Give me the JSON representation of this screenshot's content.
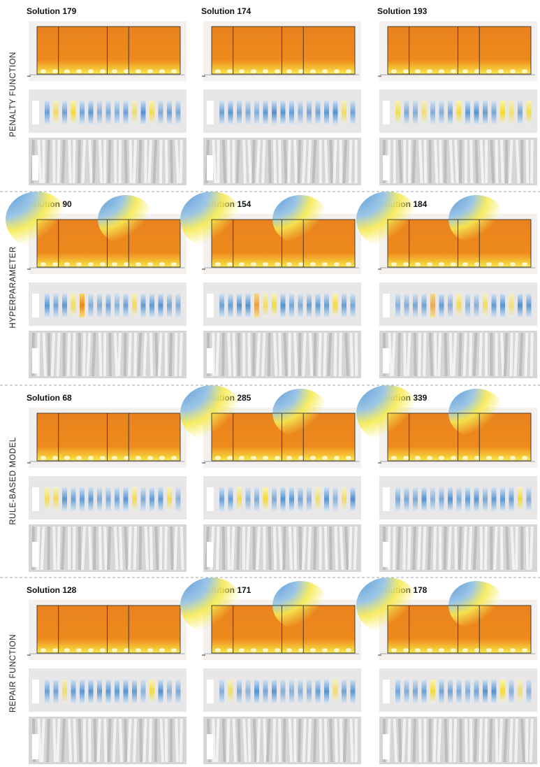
{
  "groups": [
    {
      "label": "PENALTY FUNCTION",
      "solutions": [
        "Solution 179",
        "Solution 174",
        "Solution 193"
      ]
    },
    {
      "label": "HYPERPARAMETER",
      "solutions": [
        "Solution 90",
        "Solution 154",
        "Solution 184"
      ]
    },
    {
      "label": "RULE-BASED MODEL",
      "solutions": [
        "Solution 68",
        "Solution 285",
        "Solution 339"
      ]
    },
    {
      "label": "REPAIR  FUNCTION",
      "solutions": [
        "Solution 128",
        "Solution 171",
        "Solution 178"
      ]
    }
  ]
}
